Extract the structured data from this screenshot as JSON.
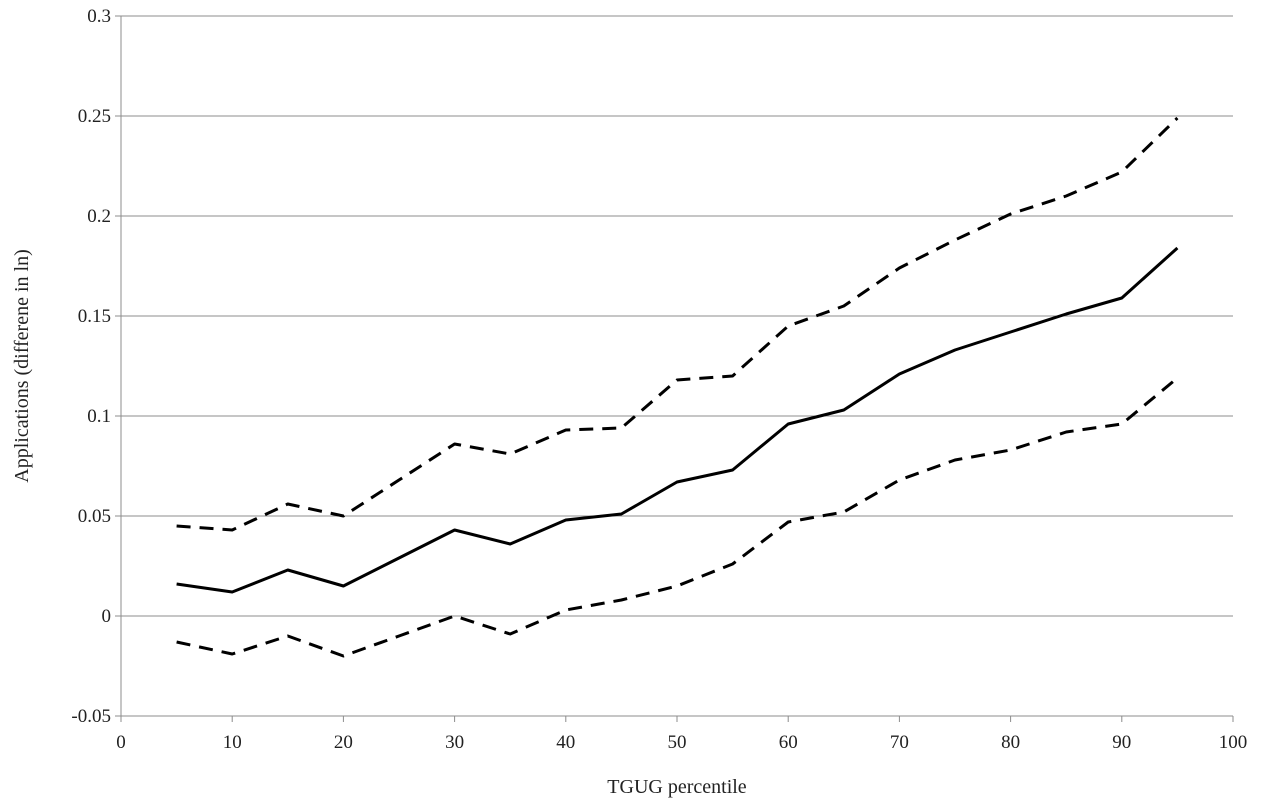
{
  "chart_data": {
    "type": "line",
    "title": "",
    "xlabel": "TGUG percentile",
    "ylabel": "Applications (differene in ln)",
    "xlim": [
      0,
      100
    ],
    "ylim": [
      -0.05,
      0.3
    ],
    "x_ticks": [
      "0",
      "10",
      "20",
      "30",
      "40",
      "50",
      "60",
      "70",
      "80",
      "90",
      "100"
    ],
    "y_ticks": [
      "-0.05",
      "0",
      "0.05",
      "0.1",
      "0.15",
      "0.2",
      "0.25",
      "0.3"
    ],
    "grid": "horizontal",
    "legend": "none",
    "x": [
      5,
      10,
      15,
      20,
      25,
      30,
      35,
      40,
      45,
      50,
      55,
      60,
      65,
      70,
      75,
      80,
      85,
      90,
      95
    ],
    "series": [
      {
        "style": "solid",
        "values": [
          0.016,
          0.012,
          0.023,
          0.015,
          0.029,
          0.043,
          0.036,
          0.048,
          0.051,
          0.067,
          0.073,
          0.096,
          0.103,
          0.121,
          0.133,
          0.142,
          0.151,
          0.159,
          0.184
        ]
      },
      {
        "style": "dashed",
        "values": [
          0.045,
          0.043,
          0.056,
          0.05,
          0.068,
          0.086,
          0.081,
          0.093,
          0.094,
          0.118,
          0.12,
          0.145,
          0.155,
          0.174,
          0.188,
          0.201,
          0.21,
          0.222,
          0.249
        ]
      },
      {
        "style": "dashed",
        "values": [
          -0.013,
          -0.019,
          -0.01,
          -0.02,
          -0.01,
          0.0,
          -0.009,
          0.003,
          0.008,
          0.015,
          0.026,
          0.047,
          0.052,
          0.068,
          0.078,
          0.083,
          0.092,
          0.096,
          0.119
        ]
      }
    ],
    "colors": {
      "line": "#000000",
      "grid": "#8c8c8c",
      "axis": "#8c8c8c"
    }
  }
}
